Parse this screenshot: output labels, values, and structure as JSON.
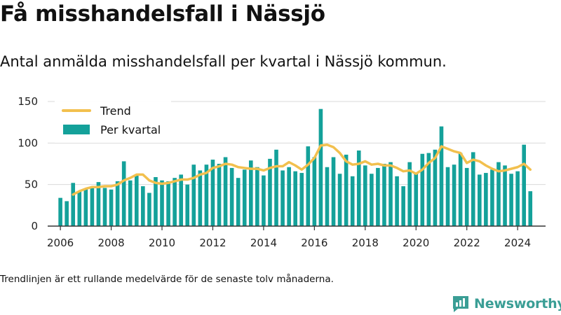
{
  "title": "Få misshandelsfall i Nässjö",
  "subtitle": "Antal anmälda misshandelsfall per kvartal i Nässjö kommun.",
  "footnote": "Trendlinjen är ett rullande medelvärde för de senaste tolv månaderna.",
  "brand": {
    "name": "Newsworthy",
    "icon": "newsworthy-logo-icon"
  },
  "colors": {
    "bar": "#14a19a",
    "trend": "#f2c04e",
    "axis": "#333333",
    "grid": "#d9d9d9"
  },
  "chart_data": {
    "type": "bar",
    "title": "Få misshandelsfall i Nässjö",
    "subtitle": "Antal anmälda misshandelsfall per kvartal i Nässjö kommun.",
    "xlabel": "",
    "ylabel": "",
    "ylim": [
      0,
      150
    ],
    "yticks": [
      0,
      50,
      100,
      150
    ],
    "xticks": [
      "2006",
      "2008",
      "2010",
      "2012",
      "2014",
      "2016",
      "2018",
      "2020",
      "2022",
      "2024"
    ],
    "xlim": [
      2005.5,
      2025.1
    ],
    "grid": "horizontal",
    "legend": "top-left",
    "legend_entries": [
      "Trend",
      "Per kvartal"
    ],
    "series": [
      {
        "name": "Per kvartal",
        "type": "bar",
        "x": [
          2006.0,
          2006.25,
          2006.5,
          2006.75,
          2007.0,
          2007.25,
          2007.5,
          2007.75,
          2008.0,
          2008.25,
          2008.5,
          2008.75,
          2009.0,
          2009.25,
          2009.5,
          2009.75,
          2010.0,
          2010.25,
          2010.5,
          2010.75,
          2011.0,
          2011.25,
          2011.5,
          2011.75,
          2012.0,
          2012.25,
          2012.5,
          2012.75,
          2013.0,
          2013.25,
          2013.5,
          2013.75,
          2014.0,
          2014.25,
          2014.5,
          2014.75,
          2015.0,
          2015.25,
          2015.5,
          2015.75,
          2016.0,
          2016.25,
          2016.5,
          2016.75,
          2017.0,
          2017.25,
          2017.5,
          2017.75,
          2018.0,
          2018.25,
          2018.5,
          2018.75,
          2019.0,
          2019.25,
          2019.5,
          2019.75,
          2020.0,
          2020.25,
          2020.5,
          2020.75,
          2021.0,
          2021.25,
          2021.5,
          2021.75,
          2022.0,
          2022.25,
          2022.5,
          2022.75,
          2023.0,
          2023.25,
          2023.5,
          2023.75,
          2024.0,
          2024.25,
          2024.5
        ],
        "values": [
          34,
          30,
          52,
          42,
          45,
          48,
          53,
          46,
          44,
          54,
          78,
          55,
          62,
          48,
          40,
          59,
          55,
          54,
          58,
          62,
          50,
          74,
          67,
          74,
          80,
          75,
          83,
          70,
          58,
          68,
          79,
          71,
          61,
          81,
          92,
          67,
          71,
          66,
          64,
          96,
          83,
          141,
          71,
          83,
          63,
          86,
          60,
          91,
          73,
          63,
          70,
          75,
          77,
          60,
          48,
          77,
          63,
          87,
          88,
          92,
          120,
          71,
          74,
          88,
          70,
          89,
          62,
          64,
          68,
          77,
          73,
          63,
          66,
          98,
          42
        ]
      },
      {
        "name": "Trend",
        "type": "line",
        "x": [
          2006.5,
          2006.75,
          2007.0,
          2007.25,
          2007.5,
          2007.75,
          2008.0,
          2008.25,
          2008.5,
          2008.75,
          2009.0,
          2009.25,
          2009.5,
          2009.75,
          2010.0,
          2010.25,
          2010.5,
          2010.75,
          2011.0,
          2011.25,
          2011.5,
          2011.75,
          2012.0,
          2012.25,
          2012.5,
          2012.75,
          2013.0,
          2013.25,
          2013.5,
          2013.75,
          2014.0,
          2014.25,
          2014.5,
          2014.75,
          2015.0,
          2015.25,
          2015.5,
          2015.75,
          2016.0,
          2016.25,
          2016.5,
          2016.75,
          2017.0,
          2017.25,
          2017.5,
          2017.75,
          2018.0,
          2018.25,
          2018.5,
          2018.75,
          2019.0,
          2019.25,
          2019.5,
          2019.75,
          2020.0,
          2020.25,
          2020.5,
          2020.75,
          2021.0,
          2021.25,
          2021.5,
          2021.75,
          2022.0,
          2022.25,
          2022.5,
          2022.75,
          2023.0,
          2023.25,
          2023.5,
          2023.75,
          2024.0,
          2024.25,
          2024.5
        ],
        "values": [
          38,
          42,
          45,
          47,
          47,
          48,
          48,
          50,
          55,
          58,
          62,
          62,
          55,
          52,
          51,
          52,
          54,
          56,
          56,
          58,
          62,
          64,
          70,
          72,
          75,
          74,
          71,
          70,
          69,
          69,
          67,
          70,
          72,
          72,
          77,
          73,
          68,
          74,
          82,
          97,
          98,
          95,
          88,
          78,
          74,
          75,
          78,
          74,
          75,
          73,
          73,
          70,
          66,
          67,
          63,
          68,
          76,
          82,
          96,
          93,
          90,
          88,
          76,
          80,
          78,
          73,
          69,
          66,
          67,
          69,
          71,
          75,
          68
        ]
      }
    ]
  }
}
